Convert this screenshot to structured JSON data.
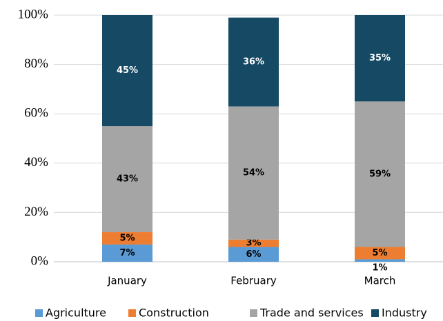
{
  "chart_data": {
    "type": "stacked_bar",
    "categories": [
      "January",
      "February",
      "March"
    ],
    "series": [
      {
        "name": "Agriculture",
        "color": "#5b9bd5",
        "values": [
          7,
          6,
          1
        ],
        "value_labels": [
          "7%",
          "6%",
          "1%"
        ]
      },
      {
        "name": "Construction",
        "color": "#ed7d31",
        "values": [
          5,
          3,
          5
        ],
        "value_labels": [
          "5%",
          "3%",
          "5%"
        ]
      },
      {
        "name": "Trade and services",
        "color": "#a5a5a5",
        "values": [
          43,
          54,
          59
        ],
        "value_labels": [
          "43%",
          "54%",
          "59%"
        ]
      },
      {
        "name": "Industry",
        "color": "#154964",
        "values": [
          45,
          36,
          35
        ],
        "value_labels": [
          "45%",
          "36%",
          "35%"
        ]
      }
    ],
    "ylim": [
      0,
      100
    ],
    "yticks": [
      {
        "value": 0,
        "label": "0%"
      },
      {
        "value": 20,
        "label": "20%"
      },
      {
        "value": 40,
        "label": "40%"
      },
      {
        "value": 60,
        "label": "60%"
      },
      {
        "value": 80,
        "label": "80%"
      },
      {
        "value": 100,
        "label": "100%"
      }
    ],
    "grid": true,
    "legend": "bottom"
  }
}
